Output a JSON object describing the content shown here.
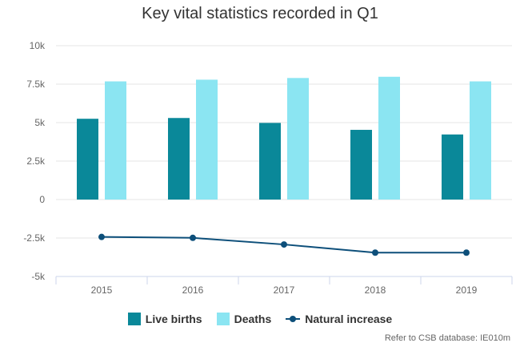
{
  "colors": {
    "live_births": "#0a8899",
    "deaths": "#8be5f2",
    "natural_increase": "#0d4f7a",
    "grid": "#e6e6e6",
    "axis_text": "#666666",
    "axis_line": "#ccd6eb"
  },
  "chart_data": {
    "type": "bar",
    "title": "Key vital statistics recorded in Q1",
    "categories": [
      "2015",
      "2016",
      "2017",
      "2018",
      "2019"
    ],
    "series": [
      {
        "name": "Live births",
        "type": "bar",
        "values": [
          5250,
          5300,
          4980,
          4530,
          4230
        ]
      },
      {
        "name": "Deaths",
        "type": "bar",
        "values": [
          7680,
          7790,
          7900,
          7980,
          7680
        ]
      },
      {
        "name": "Natural increase",
        "type": "line",
        "values": [
          -2430,
          -2490,
          -2920,
          -3450,
          -3450
        ]
      }
    ],
    "y_ticks": [
      "10k",
      "7.5k",
      "5k",
      "2.5k",
      "0",
      "-2.5k",
      "-5k"
    ],
    "y_tick_values": [
      10000,
      7500,
      5000,
      2500,
      0,
      -2500,
      -5000
    ],
    "ylim": [
      -5000,
      10000
    ],
    "grid": true,
    "legend_position": "bottom"
  },
  "source_note": "Refer to CSB database: IE010m"
}
